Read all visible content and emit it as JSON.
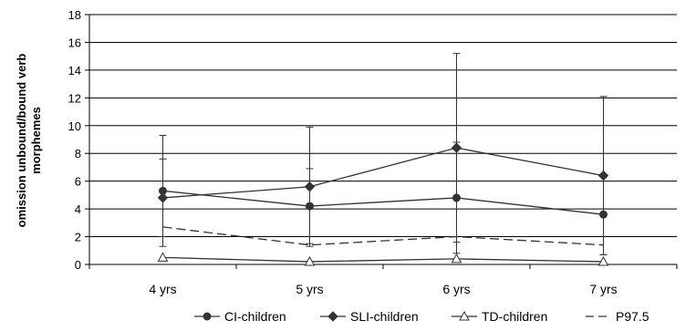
{
  "chart_data": {
    "type": "line",
    "categories": [
      "4 yrs",
      "5 yrs",
      "6 yrs",
      "7 yrs"
    ],
    "ylabel_line1": "omission unbound/bound verb",
    "ylabel_line2": "morphemes",
    "ylim": [
      0,
      18
    ],
    "yticks": [
      0,
      2,
      4,
      6,
      8,
      10,
      12,
      14,
      16,
      18
    ],
    "grid": true,
    "legend_position": "bottom",
    "series": [
      {
        "name": "CI-children",
        "marker": "circle",
        "style": "solid",
        "values": [
          5.3,
          4.2,
          4.8,
          3.6
        ],
        "error_upper": [
          9.3,
          6.9,
          8.8,
          6.5
        ],
        "error_lower": [
          1.3,
          1.5,
          0.8,
          0.7
        ]
      },
      {
        "name": "SLI-children",
        "marker": "diamond",
        "style": "solid",
        "values": [
          4.8,
          5.6,
          8.4,
          6.4
        ],
        "error_upper": [
          7.6,
          9.9,
          15.2,
          12.1
        ],
        "error_lower": [
          2.0,
          1.3,
          1.6,
          0.7
        ]
      },
      {
        "name": "TD-children",
        "marker": "triangle",
        "style": "solid",
        "values": [
          0.5,
          0.2,
          0.4,
          0.2
        ],
        "error_upper": [],
        "error_lower": []
      },
      {
        "name": "P97.5",
        "marker": "none",
        "style": "dashed",
        "values": [
          2.7,
          1.4,
          2.0,
          1.4
        ],
        "error_upper": [],
        "error_lower": []
      }
    ]
  }
}
